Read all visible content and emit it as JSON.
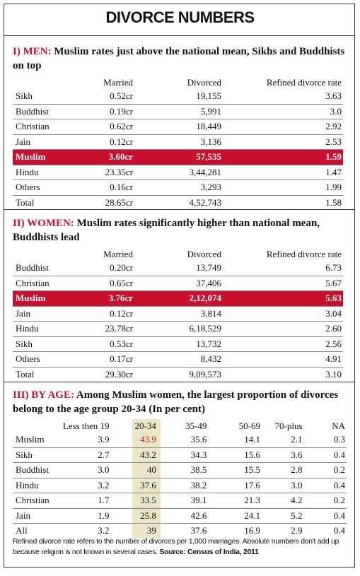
{
  "title": "DIVORCE NUMBERS",
  "sections": [
    {
      "label": "I) MEN:",
      "heading": "Muslim rates just above the national mean, Sikhs and Buddhists on top",
      "columns": [
        "Married",
        "Divorced",
        "Refined divorce rate"
      ],
      "rows": [
        [
          "Sikh",
          "0.52cr",
          "19,155",
          "3.63"
        ],
        [
          "Buddhist",
          "0.19cr",
          "5,991",
          "3.0"
        ],
        [
          "Christian",
          "0.62cr",
          "18,449",
          "2.92"
        ],
        [
          "Jain",
          "0.12cr",
          "3,136",
          "2.53"
        ],
        [
          "Muslim",
          "3.60cr",
          "57,535",
          "1.59"
        ],
        [
          "Hindu",
          "23.35cr",
          "3,44,281",
          "1.47"
        ],
        [
          "Others",
          "0.16cr",
          "3,293",
          "1.99"
        ],
        [
          "Total",
          "28.65cr",
          "4,52,743",
          "1.58"
        ]
      ]
    },
    {
      "label": "II) WOMEN:",
      "heading": "Muslim rates significantly higher than national mean, Buddhists lead",
      "columns": [
        "Married",
        "Divorced",
        "Refined divorce rate"
      ],
      "rows": [
        [
          "Buddhist",
          "0.20cr",
          "13,749",
          "6.73"
        ],
        [
          "Christian",
          "0.65cr",
          "37,406",
          "5.67"
        ],
        [
          "Muslim",
          "3.76cr",
          "2,12,074",
          "5.63"
        ],
        [
          "Jain",
          "0.12cr",
          "3,814",
          "3.04"
        ],
        [
          "Hindu",
          "23.78cr",
          "6,18,529",
          "2.60"
        ],
        [
          "Sikh",
          "0.53cr",
          "13,732",
          "2.56"
        ],
        [
          "Others",
          "0.17cr",
          "8,432",
          "4.91"
        ],
        [
          "Total",
          "29.30cr",
          "9,09,573",
          "3.10"
        ]
      ]
    },
    {
      "label": "III) BY AGE:",
      "heading": "Among Muslim women, the largest proportion of divorces belong to the age group 20-34 (In per cent)",
      "columns": [
        "Less then 19",
        "20-34",
        "35-49",
        "50-69",
        "70-plus",
        "NA"
      ],
      "rows": [
        [
          "Muslim",
          "3.9",
          "43.9",
          "35.6",
          "14.1",
          "2.1",
          "0.3"
        ],
        [
          "Sikh",
          "2.7",
          "43.2",
          "34.3",
          "15.6",
          "3.6",
          "0.4"
        ],
        [
          "Buddhist",
          "3.0",
          "40",
          "38.5",
          "15.5",
          "2.8",
          "0.2"
        ],
        [
          "Hindu",
          "3.2",
          "37.6",
          "38.2",
          "17.6",
          "3.0",
          "0.4"
        ],
        [
          "Christian",
          "1.7",
          "33.5",
          "39.1",
          "21.3",
          "4.2",
          "0.2"
        ],
        [
          "Jain",
          "1.9",
          "25.8",
          "42.6",
          "24.1",
          "5.2",
          "0.4"
        ],
        [
          "All",
          "3.2",
          "39",
          "37.6",
          "16.9",
          "2.9",
          "0.4"
        ]
      ]
    }
  ],
  "footnote": {
    "text": "Refined divorce rate refers to the number of divorces per 1,000 marriages. Absolute numbers don't add up because religion is not known in several cases.",
    "source": "Source: Census of India, 2011"
  }
}
